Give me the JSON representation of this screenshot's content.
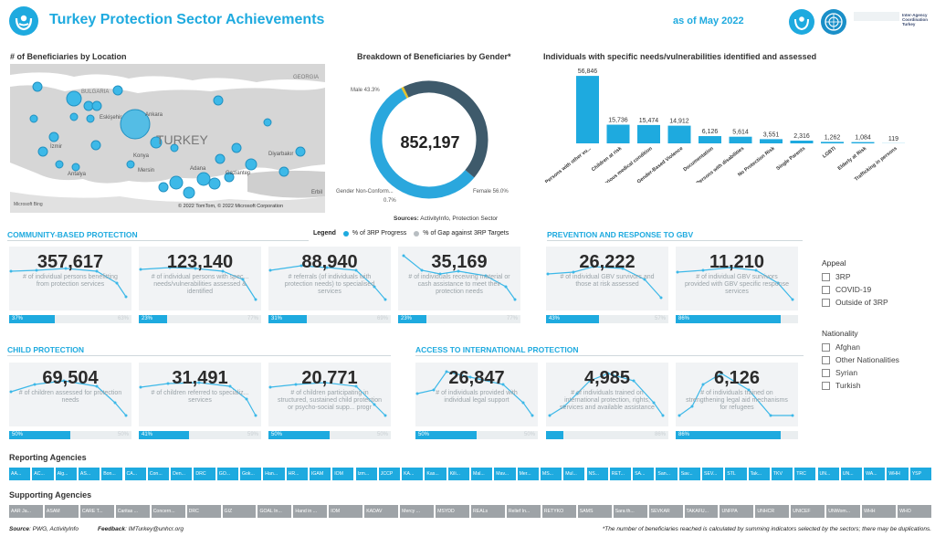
{
  "header": {
    "title": "Turkey Protection Sector Achievements",
    "date": "as of May 2022",
    "org_text": "Inter-Agency Coordination Turkey",
    "icons": [
      "unhcr-logo-icon",
      "un-emblem-icon"
    ]
  },
  "map": {
    "title": "# of Beneficiaries by Location",
    "labels": [
      "GEORGIA",
      "BULGARIA",
      "TURKEY",
      "Eskişehir",
      "Ankara",
      "İzmir",
      "Konya",
      "Antalya",
      "Mersin",
      "Gaziantep",
      "Diyarbakır",
      "Erbil",
      "Adana"
    ],
    "attribution": "© 2022 TomTom, © 2022 Microsoft Corporation",
    "bing": "Microsoft Bing",
    "colors": {
      "land": "#d6d6d6",
      "sea": "#ffffff",
      "bubble": "#3db9e8"
    }
  },
  "donut": {
    "title": "Breakdown of Beneficiaries by Gender*",
    "total": "852,197",
    "male_label": "Male 43.3%",
    "female_label": "Female 56.0%",
    "nonconf_label": "Gender Non-Conform...",
    "nonconf_pct": "0.7%",
    "male_pct": 43.3,
    "female_pct": 56.0,
    "nonconf_value": 0.7,
    "colors": {
      "male": "#3e5a6b",
      "female": "#2aa7dd",
      "nonconf": "#e3c12b"
    },
    "sources_label": "Sources:",
    "sources_text": "ActivityInfo, Protection Sector"
  },
  "chart_data": {
    "type": "bar",
    "title": "Individuals with specific needs/vulnerabilities identified and assessed",
    "categories": [
      "Persons with other vu...",
      "Children at risk",
      "Serious medical condition",
      "Gender-Based Violence",
      "Documentation",
      "Persons with disabilities",
      "No Protection Risk",
      "Single Parents",
      "LGBTI",
      "Elderly at Risk",
      "Trafficking in persons"
    ],
    "values": [
      56846,
      15736,
      15474,
      14912,
      6126,
      5614,
      3551,
      2316,
      1262,
      1084,
      119
    ],
    "value_labels": [
      "56,846",
      "15,736",
      "15,474",
      "14,912",
      "6,126",
      "5,614",
      "3,551",
      "2,316",
      "1,262",
      "1,084",
      "119"
    ],
    "color": "#1eaadf"
  },
  "legend": {
    "label": "Legend",
    "progress": "% of 3RP Progress",
    "gap": "% of Gap against 3RP Targets",
    "colors": {
      "progress": "#1eaadf",
      "gap": "#b8bec2"
    }
  },
  "categories": {
    "community": "COMMUNITY-BASED PROTECTION",
    "gbv": "PREVENTION AND RESPONSE TO GBV",
    "child": "CHILD PROTECTION",
    "access": "ACCESS TO INTERNATIONAL PROTECTION"
  },
  "kpis": [
    {
      "value": "357,617",
      "desc": "# of individual persons benefitting from protection services",
      "pct": 37,
      "pct_label": "37%",
      "gap_label": "63%"
    },
    {
      "value": "123,140",
      "desc": "# of individual persons with spec... needs/vulnerabilities assessed & identified",
      "pct": 23,
      "pct_label": "23%",
      "gap_label": "77%"
    },
    {
      "value": "88,940",
      "desc": "# referrals (of individuals with protection needs) to specialised services",
      "pct": 31,
      "pct_label": "31%",
      "gap_label": "69%"
    },
    {
      "value": "35,169",
      "desc": "# of individuals receiving material or cash assistance to meet their protection needs",
      "pct": 23,
      "pct_label": "23%",
      "gap_label": "77%"
    },
    {
      "value": "26,222",
      "desc": "# of individual GBV survivors and those at risk assessed",
      "pct": 43,
      "pct_label": "43%",
      "gap_label": "57%"
    },
    {
      "value": "11,210",
      "desc": "# of individual GBV survivors provided with GBV specific response services",
      "pct": 86,
      "pct_label": "86%",
      "gap_label": ""
    },
    {
      "value": "69,504",
      "desc": "# of children assessed for protection needs",
      "pct": 50,
      "pct_label": "50%",
      "gap_label": "50%"
    },
    {
      "value": "31,491",
      "desc": "# of children referred to specializ... services",
      "pct": 41,
      "pct_label": "41%",
      "gap_label": "59%"
    },
    {
      "value": "20,771",
      "desc": "# of children participating in structured, sustained child protection or psycho-social supp... progr",
      "pct": 50,
      "pct_label": "50%",
      "gap_label": "50%"
    },
    {
      "value": "26,847",
      "desc": "# of individuals provided with individual legal support",
      "pct": 50,
      "pct_label": "50%",
      "gap_label": "50%"
    },
    {
      "value": "4,985",
      "desc": "# of individuals trained on international protection, rights, services and available assistance",
      "pct": 14,
      "pct_label": "",
      "gap_label": "86%"
    },
    {
      "value": "6,126",
      "desc": "# of individuals trained on strengthening legal aid mechanisms for refugees",
      "pct": 86,
      "pct_label": "86%",
      "gap_label": ""
    }
  ],
  "filters": {
    "appeal_title": "Appeal",
    "appeal": [
      "3RP",
      "COVID-19",
      "Outside of 3RP"
    ],
    "nationality_title": "Nationality",
    "nationality": [
      "Afghan",
      "Other Nationalities",
      "Syrian",
      "Turkish"
    ]
  },
  "reporting": {
    "title": "Reporting Agencies",
    "items": [
      "AA...",
      "AC...",
      "Alg...",
      "AS...",
      "Bon...",
      "CA...",
      "Con...",
      "Den...",
      "DRC",
      "GO...",
      "Gok...",
      "Han...",
      "HR...",
      "IGAM",
      "IOM",
      "Izm...",
      "JCCP",
      "KA...",
      "Kas...",
      "Kili...",
      "Mal...",
      "Mav...",
      "Mer...",
      "MS...",
      "Mul...",
      "NS...",
      "RET...",
      "SA...",
      "San...",
      "Sav...",
      "SEV...",
      "STL",
      "Tak...",
      "TKV",
      "TRC",
      "UN...",
      "UN...",
      "WA...",
      "WHH",
      "YSP"
    ]
  },
  "supporting": {
    "title": "Supporting Agencies",
    "items": [
      "AAR Ja...",
      "ASAM",
      "CARE T...",
      "Caritas ...",
      "Concern...",
      "DRC",
      "GIZ",
      "GOAL In...",
      "Hand in ...",
      "IOM",
      "KADAV",
      "Mercy ...",
      "MSYDD",
      "REALs",
      "Relief In...",
      "RETYKO",
      "SAMS",
      "Sara th...",
      "SEVKAR",
      "TAKAFU...",
      "UNFPA",
      "UNHCR",
      "UNICEF",
      "UNWom...",
      "WHH",
      "WHO"
    ]
  },
  "footer": {
    "source_label": "Source",
    "source_text": ": PWG, ActivityInfo",
    "feedback_label": "Feedback",
    "feedback_text": ": IMTurkey@unhcr.org",
    "note": "*The number of beneficiaries reached is calculated by summing indicators selected by the sectors; there may be duplications."
  }
}
